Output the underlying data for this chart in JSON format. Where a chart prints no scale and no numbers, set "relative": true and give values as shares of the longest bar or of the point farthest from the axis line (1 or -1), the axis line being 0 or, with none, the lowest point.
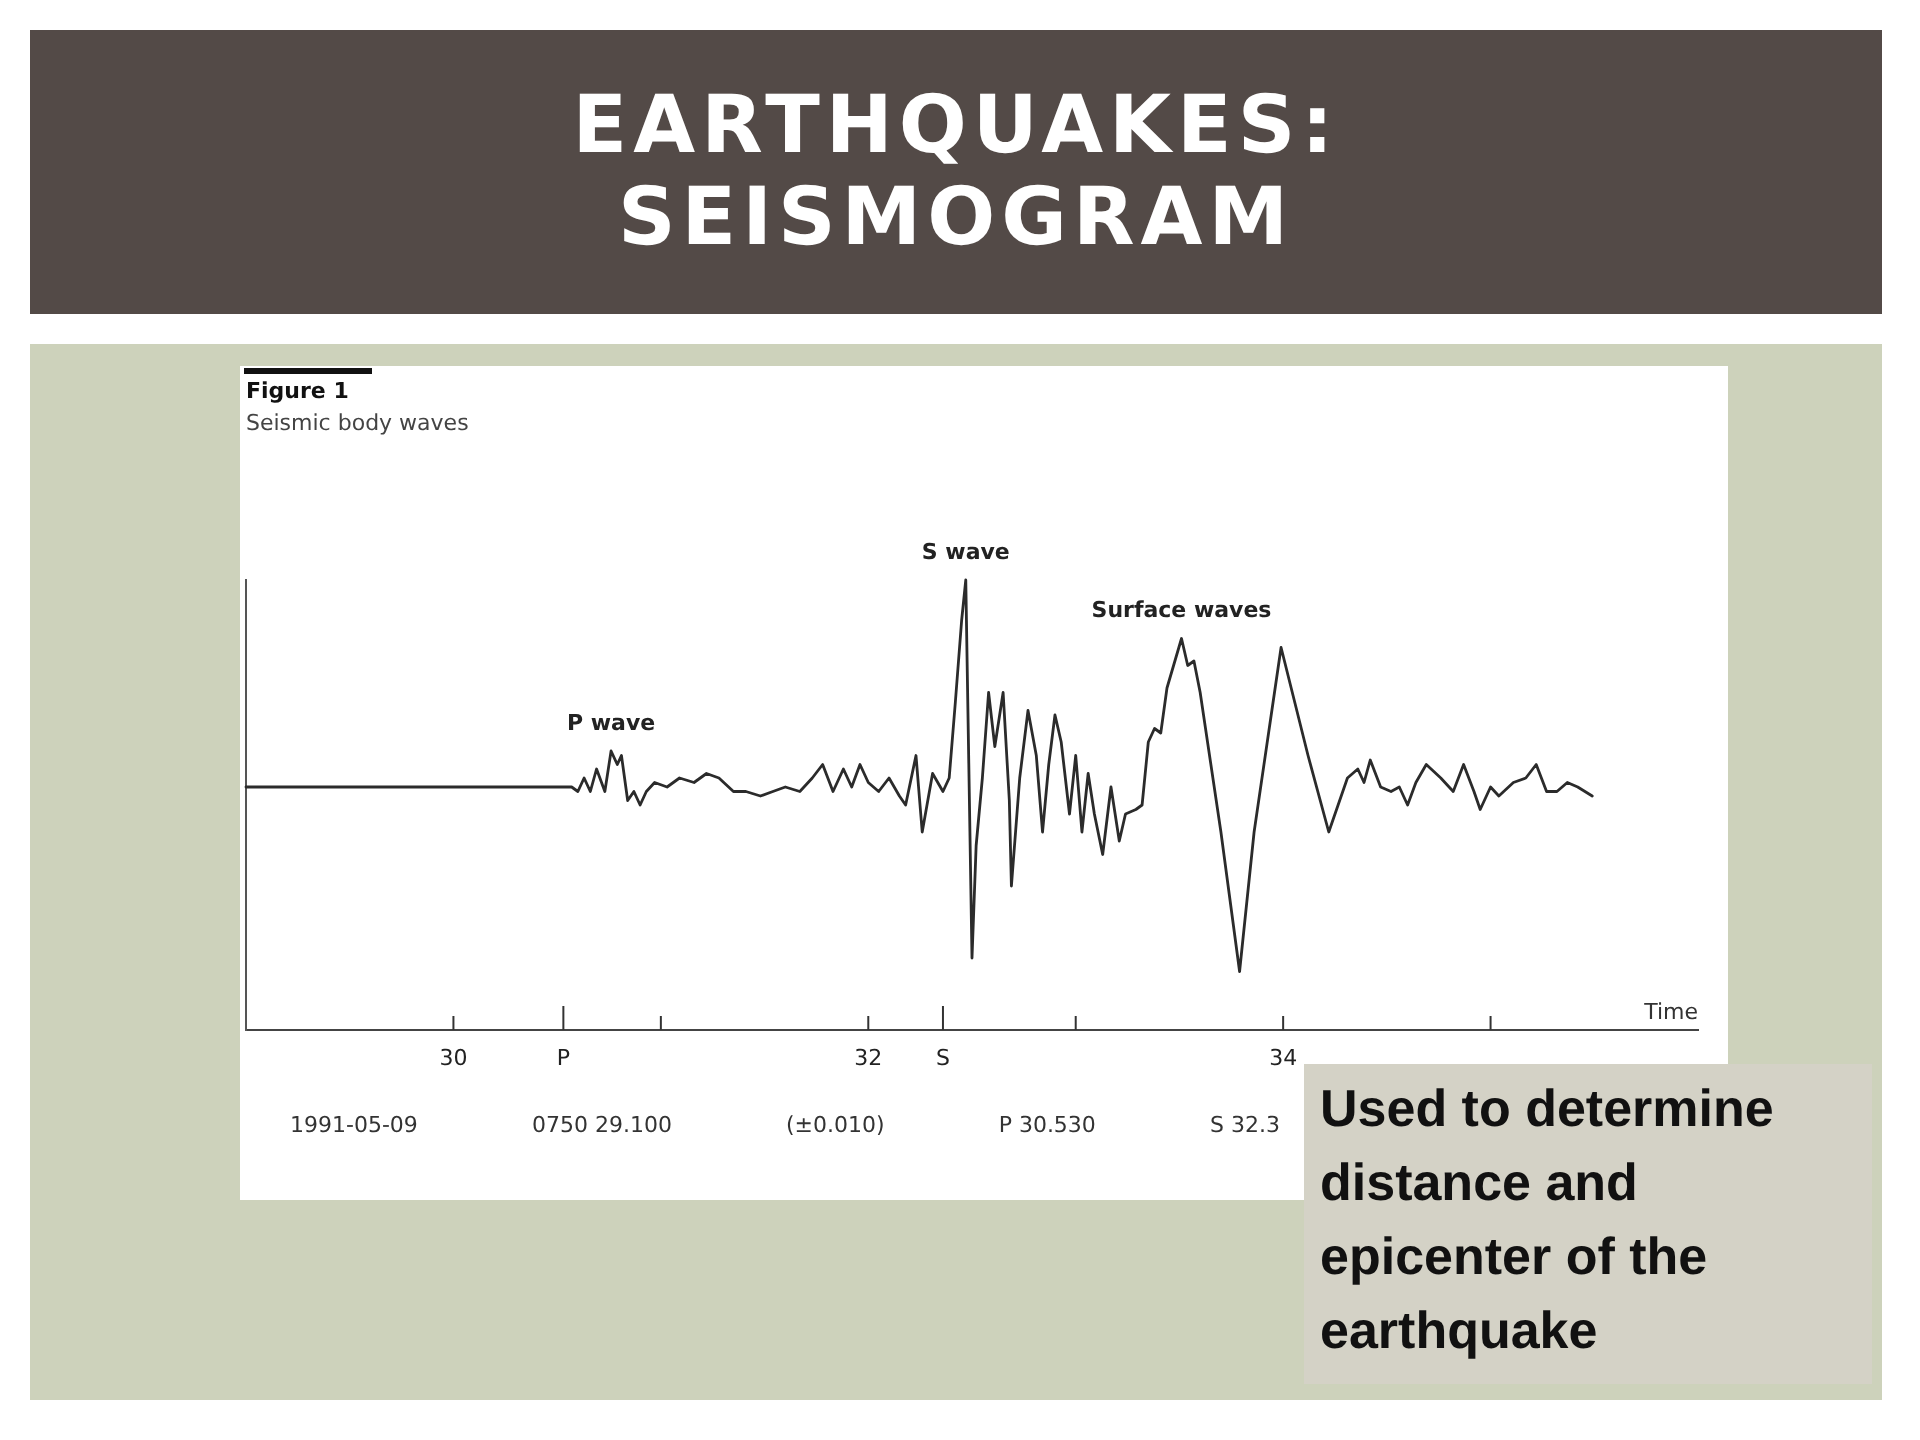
{
  "chart_data": {
    "type": "line",
    "title": "EARTHQUAKES: SEISMOGRAM",
    "subtitle": "Figure 1",
    "xlabel": "Time",
    "relative": true,
    "color": "#2b2b2b",
    "x": [
      29.0,
      30.57,
      30.6,
      30.63,
      30.66,
      30.69,
      30.73,
      30.76,
      30.79,
      30.81,
      30.84,
      30.87,
      30.9,
      30.93,
      30.97,
      31.03,
      31.09,
      31.16,
      31.22,
      31.28,
      31.35,
      31.41,
      31.48,
      31.54,
      31.6,
      31.67,
      31.73,
      31.78,
      31.83,
      31.88,
      31.92,
      31.96,
      32.0,
      32.05,
      32.1,
      32.15,
      32.18,
      32.23,
      32.26,
      32.31,
      32.36,
      32.39,
      32.42,
      32.45,
      32.47,
      32.5,
      32.52,
      32.55,
      32.58,
      32.61,
      32.65,
      32.68,
      32.69,
      32.73,
      32.77,
      32.81,
      32.84,
      32.87,
      32.9,
      32.93,
      32.97,
      33.0,
      33.03,
      33.06,
      33.09,
      33.13,
      33.17,
      33.21,
      33.24,
      33.29,
      33.32,
      33.35,
      33.38,
      33.41,
      33.44,
      33.51,
      33.54,
      33.57,
      33.6,
      33.7,
      33.79,
      33.86,
      33.99,
      34.12,
      34.22,
      34.31,
      34.36,
      34.39,
      34.42,
      34.47,
      34.52,
      34.56,
      34.6,
      34.64,
      34.69,
      34.76,
      34.82,
      34.87,
      34.92,
      34.95,
      35.0,
      35.04,
      35.11,
      35.17,
      35.22,
      35.27,
      35.32,
      35.37,
      35.42,
      35.49
    ],
    "values": [
      0.54,
      0.54,
      0.53,
      0.56,
      0.53,
      0.58,
      0.53,
      0.62,
      0.59,
      0.61,
      0.51,
      0.53,
      0.5,
      0.53,
      0.55,
      0.54,
      0.56,
      0.55,
      0.57,
      0.56,
      0.53,
      0.53,
      0.52,
      0.53,
      0.54,
      0.53,
      0.56,
      0.59,
      0.53,
      0.58,
      0.54,
      0.59,
      0.55,
      0.53,
      0.56,
      0.52,
      0.5,
      0.61,
      0.44,
      0.57,
      0.53,
      0.56,
      0.73,
      0.91,
      1.0,
      0.16,
      0.41,
      0.56,
      0.75,
      0.63,
      0.75,
      0.51,
      0.32,
      0.56,
      0.71,
      0.61,
      0.44,
      0.59,
      0.7,
      0.64,
      0.48,
      0.61,
      0.44,
      0.57,
      0.48,
      0.39,
      0.54,
      0.42,
      0.48,
      0.49,
      0.5,
      0.64,
      0.67,
      0.66,
      0.76,
      0.87,
      0.81,
      0.82,
      0.75,
      0.44,
      0.13,
      0.44,
      0.85,
      0.61,
      0.44,
      0.56,
      0.58,
      0.55,
      0.6,
      0.54,
      0.53,
      0.54,
      0.5,
      0.55,
      0.59,
      0.56,
      0.53,
      0.59,
      0.53,
      0.49,
      0.54,
      0.52,
      0.55,
      0.56,
      0.59,
      0.53,
      0.53,
      0.55,
      0.54,
      0.52
    ],
    "xlim": [
      29,
      36
    ],
    "xticks": [
      30,
      {
        "value": 30.53,
        "label": "P"
      },
      {
        "value": 31,
        "label": null
      },
      32,
      {
        "value": 32.36,
        "label": "S"
      },
      {
        "value": 33,
        "label": null
      },
      34,
      {
        "value": 35,
        "label": null
      }
    ],
    "annotations": [
      "Seismic body waves",
      {
        "text": "P wave",
        "x": 30.76,
        "y": 0.62
      },
      {
        "text": "S wave",
        "x": 32.47,
        "y": 1.0
      },
      {
        "text": "Surface waves",
        "x": 33.51,
        "y": 0.87
      },
      "1991-05-09",
      "0750 29.100",
      "(±0.010)",
      "P 30.530",
      "S 32.3",
      "Used to determine distance and epicenter of the earthquake"
    ]
  }
}
